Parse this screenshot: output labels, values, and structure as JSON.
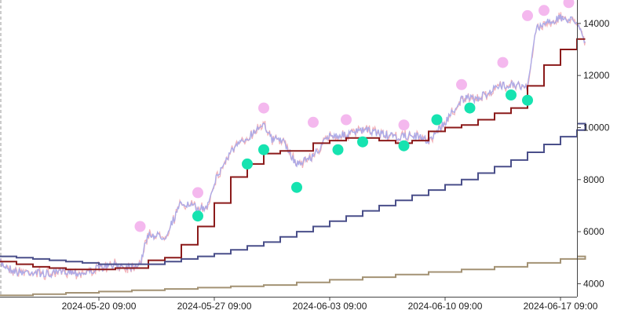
{
  "chart_data": {
    "type": "line",
    "title": "",
    "xlabel": "",
    "ylabel": "",
    "ylim": [
      3500,
      14900
    ],
    "xlim": [
      "2024-05-14 09:00",
      "2024-06-18 09:00"
    ],
    "x_axis_position": "bottom",
    "y_axis_position": "right",
    "grid": false,
    "legend": "none",
    "x_ticks": [
      {
        "x": "2024-05-20 09:00",
        "label": "2024-05-20 09:00"
      },
      {
        "x": "2024-05-27 09:00",
        "label": "2024-05-27 09:00"
      },
      {
        "x": "2024-06-03 09:00",
        "label": "2024-06-03 09:00"
      },
      {
        "x": "2024-06-10 09:00",
        "label": "2024-06-10 09:00"
      },
      {
        "x": "2024-06-17 09:00",
        "label": "2024-06-17 09:00"
      }
    ],
    "y_ticks": [
      {
        "y": 4000,
        "label": "4000"
      },
      {
        "y": 6000,
        "label": "6000"
      },
      {
        "y": 8000,
        "label": "8000"
      },
      {
        "y": 10000,
        "label": "10000"
      },
      {
        "y": 12000,
        "label": "12000"
      },
      {
        "y": 14000,
        "label": "14000"
      }
    ],
    "series": [
      {
        "style": "noisy-line",
        "color": "#a9a9e8",
        "color_alt": "#f2a8b0",
        "points": [
          [
            "2024-05-14 09:00",
            4800
          ],
          [
            "2024-05-15 09:00",
            4450
          ],
          [
            "2024-05-16 09:00",
            4450
          ],
          [
            "2024-05-17 09:00",
            4350
          ],
          [
            "2024-05-18 09:00",
            4500
          ],
          [
            "2024-05-19 09:00",
            4400
          ],
          [
            "2024-05-20 09:00",
            4600
          ],
          [
            "2024-05-21 09:00",
            4700
          ],
          [
            "2024-05-22 09:00",
            4650
          ],
          [
            "2024-05-22 21:00",
            4800
          ],
          [
            "2024-05-23 09:00",
            5900
          ],
          [
            "2024-05-24 09:00",
            5800
          ],
          [
            "2024-05-25 09:00",
            7100
          ],
          [
            "2024-05-26 09:00",
            6900
          ],
          [
            "2024-05-26 21:00",
            6900
          ],
          [
            "2024-05-27 09:00",
            7900
          ],
          [
            "2024-05-28 09:00",
            9100
          ],
          [
            "2024-05-29 09:00",
            9600
          ],
          [
            "2024-05-30 09:00",
            10200
          ],
          [
            "2024-05-30 21:00",
            9500
          ],
          [
            "2024-05-31 09:00",
            9600
          ],
          [
            "2024-06-01 09:00",
            8600
          ],
          [
            "2024-06-02 09:00",
            8900
          ],
          [
            "2024-06-03 09:00",
            9700
          ],
          [
            "2024-06-04 09:00",
            9700
          ],
          [
            "2024-06-05 09:00",
            9900
          ],
          [
            "2024-06-06 09:00",
            9800
          ],
          [
            "2024-06-07 09:00",
            9600
          ],
          [
            "2024-06-08 09:00",
            9700
          ],
          [
            "2024-06-09 09:00",
            9500
          ],
          [
            "2024-06-10 09:00",
            10200
          ],
          [
            "2024-06-11 09:00",
            11100
          ],
          [
            "2024-06-12 09:00",
            11100
          ],
          [
            "2024-06-13 09:00",
            11500
          ],
          [
            "2024-06-14 09:00",
            11700
          ],
          [
            "2024-06-15 09:00",
            11500
          ],
          [
            "2024-06-15 21:00",
            13800
          ],
          [
            "2024-06-16 09:00",
            14000
          ],
          [
            "2024-06-17 09:00",
            14200
          ],
          [
            "2024-06-18 09:00",
            14100
          ],
          [
            "2024-06-18 21:00",
            13300
          ]
        ]
      },
      {
        "style": "step",
        "color": "#8b1a1a",
        "points": [
          [
            "2024-05-14 09:00",
            4850
          ],
          [
            "2024-05-15 09:00",
            4750
          ],
          [
            "2024-05-16 09:00",
            4650
          ],
          [
            "2024-05-17 09:00",
            4600
          ],
          [
            "2024-05-18 09:00",
            4550
          ],
          [
            "2024-05-19 09:00",
            4550
          ],
          [
            "2024-05-20 09:00",
            4550
          ],
          [
            "2024-05-21 09:00",
            4600
          ],
          [
            "2024-05-22 09:00",
            4600
          ],
          [
            "2024-05-23 09:00",
            4900
          ],
          [
            "2024-05-24 09:00",
            5000
          ],
          [
            "2024-05-25 09:00",
            5500
          ],
          [
            "2024-05-26 09:00",
            6200
          ],
          [
            "2024-05-27 09:00",
            7100
          ],
          [
            "2024-05-28 09:00",
            8100
          ],
          [
            "2024-05-29 09:00",
            8600
          ],
          [
            "2024-05-30 09:00",
            9000
          ],
          [
            "2024-05-31 09:00",
            9100
          ],
          [
            "2024-06-01 09:00",
            9100
          ],
          [
            "2024-06-02 09:00",
            9400
          ],
          [
            "2024-06-03 09:00",
            9500
          ],
          [
            "2024-06-04 09:00",
            9600
          ],
          [
            "2024-06-05 09:00",
            9600
          ],
          [
            "2024-06-06 09:00",
            9500
          ],
          [
            "2024-06-07 09:00",
            9400
          ],
          [
            "2024-06-08 09:00",
            9500
          ],
          [
            "2024-06-09 09:00",
            9850
          ],
          [
            "2024-06-10 09:00",
            10000
          ],
          [
            "2024-06-11 09:00",
            10100
          ],
          [
            "2024-06-12 09:00",
            10300
          ],
          [
            "2024-06-13 09:00",
            10550
          ],
          [
            "2024-06-14 09:00",
            10750
          ],
          [
            "2024-06-15 09:00",
            11600
          ],
          [
            "2024-06-16 09:00",
            12400
          ],
          [
            "2024-06-17 09:00",
            13000
          ],
          [
            "2024-06-18 09:00",
            13400
          ],
          [
            "2024-06-18 21:00",
            13400
          ]
        ]
      },
      {
        "style": "step",
        "color": "#4a4f8a",
        "points": [
          [
            "2024-05-14 09:00",
            5050
          ],
          [
            "2024-05-15 09:00",
            5000
          ],
          [
            "2024-05-16 09:00",
            4950
          ],
          [
            "2024-05-17 09:00",
            4900
          ],
          [
            "2024-05-18 09:00",
            4850
          ],
          [
            "2024-05-19 09:00",
            4800
          ],
          [
            "2024-05-20 09:00",
            4750
          ],
          [
            "2024-05-21 09:00",
            4750
          ],
          [
            "2024-05-22 09:00",
            4750
          ],
          [
            "2024-05-23 09:00",
            4750
          ],
          [
            "2024-05-24 09:00",
            4850
          ],
          [
            "2024-05-25 09:00",
            4950
          ],
          [
            "2024-05-26 09:00",
            5050
          ],
          [
            "2024-05-27 09:00",
            5150
          ],
          [
            "2024-05-28 09:00",
            5300
          ],
          [
            "2024-05-29 09:00",
            5450
          ],
          [
            "2024-05-30 09:00",
            5600
          ],
          [
            "2024-05-31 09:00",
            5800
          ],
          [
            "2024-06-01 09:00",
            6000
          ],
          [
            "2024-06-02 09:00",
            6200
          ],
          [
            "2024-06-03 09:00",
            6400
          ],
          [
            "2024-06-04 09:00",
            6600
          ],
          [
            "2024-06-05 09:00",
            6800
          ],
          [
            "2024-06-06 09:00",
            7000
          ],
          [
            "2024-06-07 09:00",
            7200
          ],
          [
            "2024-06-08 09:00",
            7400
          ],
          [
            "2024-06-09 09:00",
            7600
          ],
          [
            "2024-06-10 09:00",
            7800
          ],
          [
            "2024-06-11 09:00",
            8000
          ],
          [
            "2024-06-12 09:00",
            8250
          ],
          [
            "2024-06-13 09:00",
            8500
          ],
          [
            "2024-06-14 09:00",
            8750
          ],
          [
            "2024-06-15 09:00",
            9050
          ],
          [
            "2024-06-16 09:00",
            9350
          ],
          [
            "2024-06-17 09:00",
            9650
          ],
          [
            "2024-06-18 09:00",
            9900
          ],
          [
            "2024-06-18 21:00",
            10150
          ]
        ]
      },
      {
        "style": "step",
        "color": "#a39274",
        "points": [
          [
            "2024-05-14 09:00",
            3550
          ],
          [
            "2024-05-16 09:00",
            3600
          ],
          [
            "2024-05-18 09:00",
            3650
          ],
          [
            "2024-05-20 09:00",
            3700
          ],
          [
            "2024-05-22 09:00",
            3750
          ],
          [
            "2024-05-24 09:00",
            3800
          ],
          [
            "2024-05-26 09:00",
            3850
          ],
          [
            "2024-05-28 09:00",
            3900
          ],
          [
            "2024-05-30 09:00",
            3950
          ],
          [
            "2024-06-01 09:00",
            4050
          ],
          [
            "2024-06-03 09:00",
            4150
          ],
          [
            "2024-06-05 09:00",
            4250
          ],
          [
            "2024-06-07 09:00",
            4350
          ],
          [
            "2024-06-09 09:00",
            4450
          ],
          [
            "2024-06-11 09:00",
            4550
          ],
          [
            "2024-06-13 09:00",
            4650
          ],
          [
            "2024-06-15 09:00",
            4800
          ],
          [
            "2024-06-17 09:00",
            4950
          ],
          [
            "2024-06-18 21:00",
            5050
          ]
        ]
      }
    ],
    "markers": [
      {
        "kind": "high",
        "color": "#f4b8ee",
        "points": [
          [
            "2024-05-22 21:00",
            6200
          ],
          [
            "2024-05-26 09:00",
            7500
          ],
          [
            "2024-05-30 09:00",
            10750
          ],
          [
            "2024-06-02 09:00",
            10200
          ],
          [
            "2024-06-04 09:00",
            10300
          ],
          [
            "2024-06-07 21:00",
            10100
          ],
          [
            "2024-06-11 09:00",
            11650
          ],
          [
            "2024-06-13 21:00",
            12500
          ],
          [
            "2024-06-15 09:00",
            14300
          ],
          [
            "2024-06-16 09:00",
            14500
          ],
          [
            "2024-06-17 21:00",
            14800
          ]
        ]
      },
      {
        "kind": "low",
        "color": "#16e3b0",
        "points": [
          [
            "2024-05-26 09:00",
            6600
          ],
          [
            "2024-05-29 09:00",
            8600
          ],
          [
            "2024-05-30 09:00",
            9150
          ],
          [
            "2024-06-01 09:00",
            7700
          ],
          [
            "2024-06-03 21:00",
            9150
          ],
          [
            "2024-06-05 09:00",
            9450
          ],
          [
            "2024-06-07 21:00",
            9300
          ],
          [
            "2024-06-09 21:00",
            10300
          ],
          [
            "2024-06-11 21:00",
            10750
          ],
          [
            "2024-06-14 09:00",
            11250
          ],
          [
            "2024-06-15 09:00",
            11050
          ]
        ]
      }
    ]
  }
}
